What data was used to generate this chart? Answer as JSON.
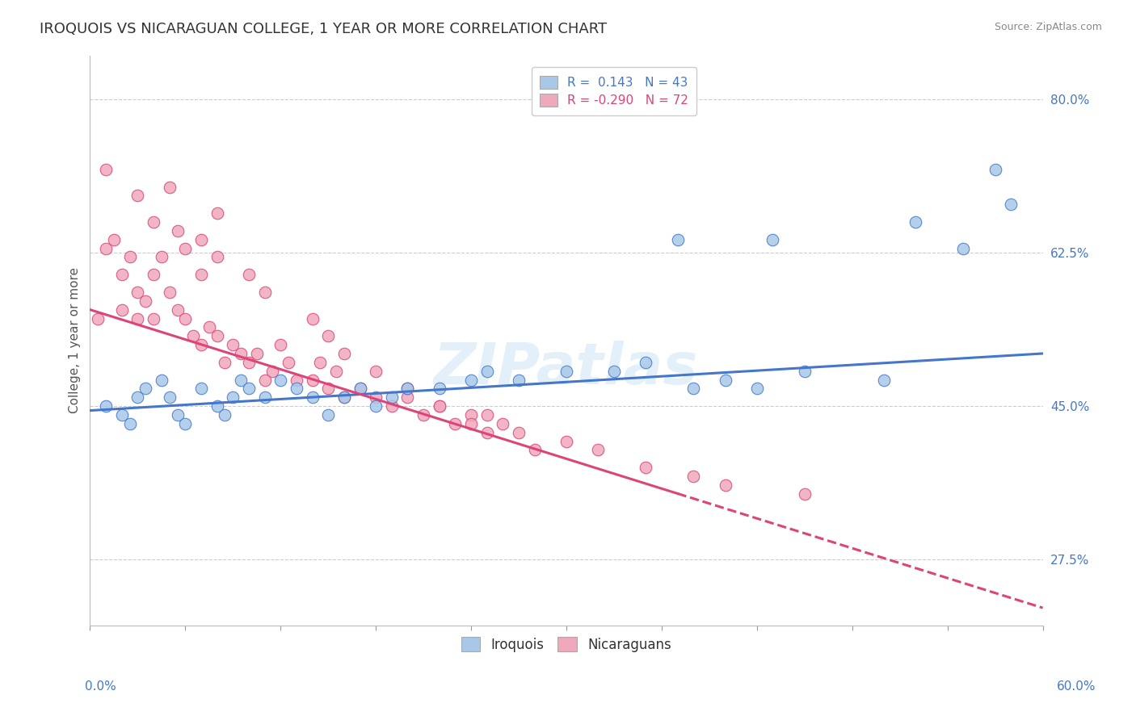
{
  "title": "IROQUOIS VS NICARAGUAN COLLEGE, 1 YEAR OR MORE CORRELATION CHART",
  "source_text": "Source: ZipAtlas.com",
  "xlim": [
    0.0,
    60.0
  ],
  "ylim": [
    20.0,
    85.0
  ],
  "yticks": [
    27.5,
    45.0,
    62.5,
    80.0
  ],
  "ylabel": "College, 1 year or more",
  "legend_blue_text": "R =  0.143   N = 43",
  "legend_pink_text": "R = -0.290   N = 72",
  "legend_blue_label": "Iroquois",
  "legend_pink_label": "Nicaraguans",
  "blue_color": "#a8c8e8",
  "pink_color": "#f0a8bc",
  "blue_line_color": "#4477cc",
  "pink_line_color": "#dd4477",
  "watermark": "ZIPatlas",
  "background_color": "#ffffff",
  "grid_color": "#cccccc",
  "iroquois_x": [
    1.0,
    2.0,
    2.5,
    3.0,
    3.5,
    4.5,
    5.0,
    5.5,
    6.0,
    7.0,
    8.0,
    8.5,
    9.0,
    9.5,
    10.0,
    11.0,
    12.0,
    13.0,
    14.0,
    15.0,
    16.0,
    17.0,
    18.0,
    19.0,
    20.0,
    22.0,
    24.0,
    25.0,
    27.0,
    30.0,
    33.0,
    35.0,
    37.0,
    38.0,
    40.0,
    42.0,
    45.0,
    50.0,
    52.0,
    55.0,
    57.0,
    43.0,
    58.0
  ],
  "iroquois_y": [
    45.0,
    44.0,
    43.0,
    46.0,
    47.0,
    48.0,
    46.0,
    44.0,
    43.0,
    47.0,
    45.0,
    44.0,
    46.0,
    48.0,
    47.0,
    46.0,
    48.0,
    47.0,
    46.0,
    44.0,
    46.0,
    47.0,
    45.0,
    46.0,
    47.0,
    47.0,
    48.0,
    49.0,
    48.0,
    49.0,
    49.0,
    50.0,
    64.0,
    47.0,
    48.0,
    47.0,
    49.0,
    48.0,
    66.0,
    63.0,
    72.0,
    64.0,
    68.0
  ],
  "nicaraguan_x": [
    0.5,
    1.0,
    1.0,
    1.5,
    2.0,
    2.0,
    2.5,
    3.0,
    3.0,
    3.5,
    4.0,
    4.0,
    4.5,
    5.0,
    5.5,
    6.0,
    6.5,
    7.0,
    7.5,
    8.0,
    8.5,
    9.0,
    9.5,
    10.0,
    10.5,
    11.0,
    11.5,
    12.0,
    12.5,
    13.0,
    14.0,
    14.5,
    15.0,
    15.5,
    16.0,
    17.0,
    18.0,
    19.0,
    20.0,
    21.0,
    22.0,
    23.0,
    24.0,
    25.0,
    25.0,
    26.0,
    27.0,
    28.0,
    30.0,
    32.0,
    35.0,
    40.0,
    45.0,
    38.0,
    8.0,
    5.0,
    5.5,
    7.0,
    8.0,
    10.0,
    11.0,
    3.0,
    4.0,
    6.0,
    7.0,
    14.0,
    15.0,
    16.0,
    18.0,
    20.0,
    22.0,
    24.0
  ],
  "nicaraguan_y": [
    55.0,
    72.0,
    63.0,
    64.0,
    60.0,
    56.0,
    62.0,
    58.0,
    55.0,
    57.0,
    60.0,
    55.0,
    62.0,
    58.0,
    56.0,
    55.0,
    53.0,
    52.0,
    54.0,
    53.0,
    50.0,
    52.0,
    51.0,
    50.0,
    51.0,
    48.0,
    49.0,
    52.0,
    50.0,
    48.0,
    48.0,
    50.0,
    47.0,
    49.0,
    46.0,
    47.0,
    46.0,
    45.0,
    46.0,
    44.0,
    45.0,
    43.0,
    44.0,
    44.0,
    42.0,
    43.0,
    42.0,
    40.0,
    41.0,
    40.0,
    38.0,
    36.0,
    35.0,
    37.0,
    67.0,
    70.0,
    65.0,
    64.0,
    62.0,
    60.0,
    58.0,
    69.0,
    66.0,
    63.0,
    60.0,
    55.0,
    53.0,
    51.0,
    49.0,
    47.0,
    45.0,
    43.0
  ],
  "blue_line_x0": 0.0,
  "blue_line_y0": 44.5,
  "blue_line_x1": 60.0,
  "blue_line_y1": 51.0,
  "pink_line_x0": 0.0,
  "pink_line_y0": 56.0,
  "pink_line_x1": 60.0,
  "pink_line_y1": 22.0,
  "pink_solid_end_x": 37.0
}
